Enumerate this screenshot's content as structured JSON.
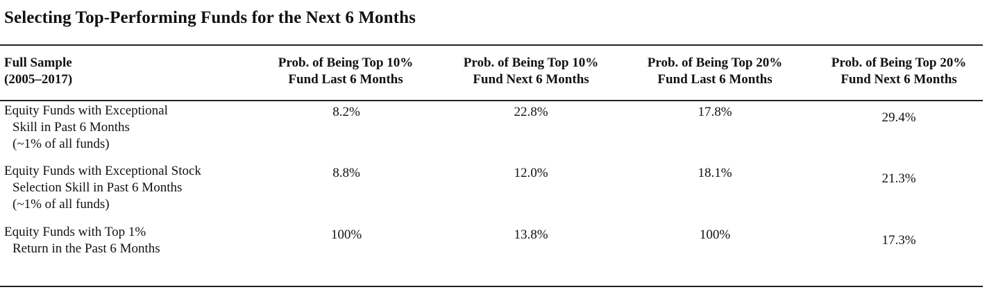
{
  "title": "Selecting Top-Performing Funds for the Next 6 Months",
  "table": {
    "sample_header": [
      "Full Sample",
      "(2005–2017)"
    ],
    "columns": [
      [
        "Prob. of Being Top 10%",
        "Fund Last 6 Months"
      ],
      [
        "Prob. of Being Top 10%",
        "Fund Next 6 Months"
      ],
      [
        "Prob. of Being Top 20%",
        "Fund Last 6 Months"
      ],
      [
        "Prob. of Being Top 20%",
        "Fund Next 6 Months"
      ]
    ],
    "rows": [
      {
        "label": [
          "Equity Funds with Exceptional",
          "Skill in Past 6 Months",
          "(~1% of all funds)"
        ],
        "values": [
          "8.2%",
          "22.8%",
          "17.8%",
          "29.4%"
        ]
      },
      {
        "label": [
          "Equity Funds with Exceptional Stock",
          "Selection Skill in Past 6 Months",
          "(~1% of all funds)"
        ],
        "values": [
          "8.8%",
          "12.0%",
          "18.1%",
          "21.3%"
        ]
      },
      {
        "label": [
          "Equity Funds with Top 1%",
          "Return in the Past 6 Months"
        ],
        "values": [
          "100%",
          "13.8%",
          "100%",
          "17.3%"
        ]
      }
    ]
  }
}
